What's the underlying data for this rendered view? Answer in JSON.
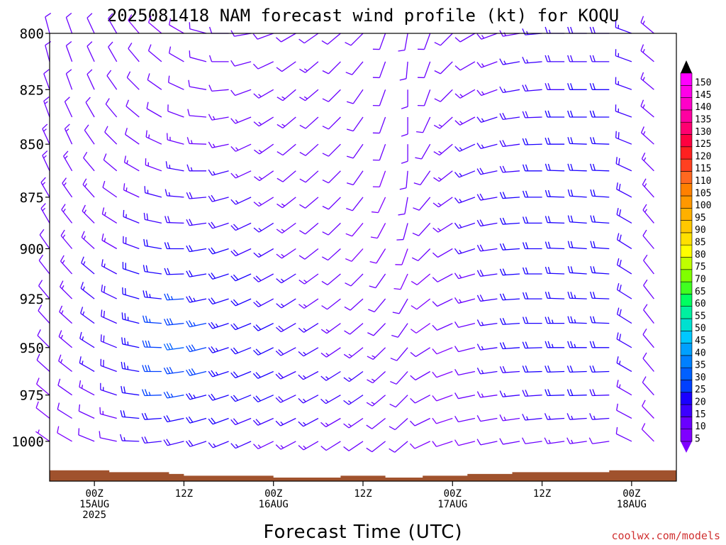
{
  "title": "2025081418 NAM forecast wind profile (kt) for KOQU",
  "credit": "coolwx.com/models",
  "chart_data": {
    "type": "wind-barb-time-height",
    "xlabel": "Forecast Time (UTC)",
    "ylabel": "",
    "y_log_pressure": true,
    "ylim_hpa": [
      1022,
      800
    ],
    "y_ticks": [
      800,
      825,
      850,
      875,
      900,
      925,
      950,
      975,
      1000
    ],
    "x_range": [
      "2025-08-14T18:00Z",
      "2025-08-18T06:00Z"
    ],
    "x_ticks": [
      {
        "time": "2025-08-15T00:00Z",
        "lines": [
          "00Z",
          "15AUG",
          "2025"
        ]
      },
      {
        "time": "2025-08-15T12:00Z",
        "lines": [
          "12Z"
        ]
      },
      {
        "time": "2025-08-16T00:00Z",
        "lines": [
          "00Z",
          "16AUG"
        ]
      },
      {
        "time": "2025-08-16T12:00Z",
        "lines": [
          "12Z"
        ]
      },
      {
        "time": "2025-08-17T00:00Z",
        "lines": [
          "00Z",
          "17AUG"
        ]
      },
      {
        "time": "2025-08-17T12:00Z",
        "lines": [
          "12Z"
        ]
      },
      {
        "time": "2025-08-18T00:00Z",
        "lines": [
          "00Z",
          "18AUG"
        ]
      }
    ],
    "levels_hpa": [
      800,
      812.5,
      825,
      837.5,
      850,
      862.5,
      875,
      887.5,
      900,
      912.5,
      925,
      937.5,
      950,
      962.5,
      975,
      987.5,
      1000
    ],
    "times": [
      "2025-08-14T18:00Z",
      "2025-08-14T21:00Z",
      "2025-08-15T00:00Z",
      "2025-08-15T03:00Z",
      "2025-08-15T06:00Z",
      "2025-08-15T09:00Z",
      "2025-08-15T12:00Z",
      "2025-08-15T15:00Z",
      "2025-08-15T18:00Z",
      "2025-08-15T21:00Z",
      "2025-08-16T00:00Z",
      "2025-08-16T03:00Z",
      "2025-08-16T06:00Z",
      "2025-08-16T09:00Z",
      "2025-08-16T12:00Z",
      "2025-08-16T15:00Z",
      "2025-08-16T18:00Z",
      "2025-08-16T21:00Z",
      "2025-08-17T00:00Z",
      "2025-08-17T03:00Z",
      "2025-08-17T06:00Z",
      "2025-08-17T09:00Z",
      "2025-08-17T12:00Z",
      "2025-08-17T15:00Z",
      "2025-08-17T18:00Z",
      "2025-08-17T21:00Z",
      "2025-08-18T00:00Z",
      "2025-08-18T03:00Z"
    ],
    "speed_kt": [
      [
        12,
        12,
        10,
        10,
        8,
        8,
        8,
        10,
        10,
        10,
        12,
        12,
        12,
        12,
        10,
        10,
        10,
        10,
        12,
        12,
        14,
        14,
        16,
        16,
        18,
        18,
        16,
        14
      ],
      [
        12,
        12,
        10,
        10,
        10,
        10,
        10,
        10,
        10,
        12,
        12,
        12,
        14,
        12,
        12,
        10,
        10,
        10,
        12,
        12,
        14,
        16,
        16,
        18,
        18,
        18,
        16,
        14
      ],
      [
        12,
        12,
        10,
        10,
        10,
        10,
        12,
        12,
        12,
        12,
        14,
        14,
        14,
        12,
        12,
        10,
        10,
        10,
        12,
        14,
        14,
        16,
        18,
        18,
        20,
        20,
        16,
        14
      ],
      [
        14,
        12,
        12,
        12,
        12,
        12,
        12,
        12,
        14,
        14,
        14,
        14,
        12,
        12,
        10,
        10,
        10,
        12,
        14,
        14,
        16,
        18,
        18,
        20,
        20,
        20,
        16,
        14
      ],
      [
        14,
        14,
        12,
        12,
        12,
        14,
        14,
        14,
        14,
        14,
        14,
        12,
        12,
        10,
        10,
        10,
        10,
        12,
        14,
        16,
        16,
        18,
        20,
        20,
        20,
        20,
        18,
        14
      ],
      [
        14,
        14,
        12,
        12,
        14,
        14,
        16,
        16,
        16,
        14,
        14,
        12,
        12,
        10,
        10,
        8,
        10,
        12,
        14,
        16,
        18,
        18,
        20,
        20,
        22,
        22,
        18,
        14
      ],
      [
        14,
        14,
        14,
        12,
        14,
        16,
        16,
        18,
        18,
        16,
        14,
        14,
        12,
        10,
        10,
        8,
        10,
        12,
        14,
        16,
        18,
        20,
        20,
        22,
        22,
        22,
        18,
        14
      ],
      [
        14,
        14,
        14,
        14,
        16,
        18,
        18,
        18,
        18,
        18,
        16,
        14,
        12,
        10,
        8,
        8,
        10,
        12,
        14,
        16,
        18,
        20,
        20,
        22,
        22,
        22,
        18,
        14
      ],
      [
        12,
        14,
        14,
        14,
        18,
        20,
        20,
        20,
        20,
        18,
        16,
        14,
        12,
        10,
        8,
        8,
        8,
        10,
        12,
        16,
        18,
        20,
        20,
        22,
        22,
        22,
        18,
        12
      ],
      [
        12,
        14,
        16,
        16,
        20,
        22,
        22,
        22,
        20,
        20,
        18,
        16,
        14,
        12,
        10,
        10,
        8,
        8,
        10,
        14,
        18,
        20,
        22,
        22,
        22,
        22,
        18,
        12
      ],
      [
        12,
        14,
        16,
        18,
        22,
        24,
        26,
        24,
        22,
        20,
        18,
        16,
        14,
        12,
        12,
        12,
        10,
        8,
        10,
        14,
        18,
        20,
        22,
        22,
        24,
        22,
        18,
        12
      ],
      [
        10,
        14,
        16,
        18,
        24,
        26,
        28,
        26,
        24,
        22,
        20,
        18,
        16,
        14,
        12,
        12,
        10,
        8,
        10,
        12,
        16,
        20,
        22,
        24,
        24,
        22,
        18,
        12
      ],
      [
        10,
        14,
        16,
        18,
        24,
        28,
        30,
        28,
        24,
        22,
        20,
        18,
        16,
        14,
        14,
        14,
        12,
        10,
        8,
        12,
        16,
        20,
        22,
        24,
        24,
        22,
        18,
        12
      ],
      [
        10,
        14,
        16,
        18,
        24,
        28,
        28,
        28,
        24,
        22,
        20,
        18,
        16,
        16,
        16,
        14,
        12,
        10,
        8,
        12,
        16,
        18,
        20,
        22,
        22,
        20,
        16,
        10
      ],
      [
        8,
        12,
        14,
        16,
        22,
        26,
        26,
        24,
        22,
        20,
        20,
        18,
        16,
        16,
        16,
        14,
        12,
        10,
        8,
        10,
        14,
        16,
        18,
        20,
        20,
        18,
        14,
        10
      ],
      [
        8,
        10,
        12,
        14,
        20,
        22,
        22,
        22,
        20,
        18,
        18,
        16,
        16,
        14,
        14,
        12,
        12,
        10,
        8,
        10,
        12,
        14,
        16,
        16,
        16,
        16,
        12,
        8
      ],
      [
        6,
        8,
        10,
        12,
        16,
        18,
        18,
        18,
        16,
        16,
        14,
        14,
        14,
        12,
        12,
        10,
        10,
        8,
        8,
        8,
        10,
        12,
        12,
        14,
        14,
        12,
        10,
        8
      ]
    ],
    "dir_deg": [
      [
        345,
        340,
        335,
        330,
        320,
        310,
        300,
        285,
        270,
        260,
        250,
        240,
        235,
        230,
        225,
        200,
        190,
        200,
        225,
        240,
        250,
        260,
        265,
        270,
        270,
        270,
        290,
        310
      ],
      [
        345,
        340,
        335,
        330,
        320,
        310,
        300,
        285,
        270,
        255,
        245,
        235,
        230,
        225,
        220,
        200,
        185,
        200,
        225,
        240,
        250,
        260,
        265,
        270,
        270,
        270,
        290,
        310
      ],
      [
        340,
        340,
        335,
        325,
        315,
        305,
        295,
        280,
        265,
        250,
        240,
        230,
        230,
        225,
        215,
        200,
        180,
        200,
        225,
        240,
        250,
        260,
        265,
        270,
        270,
        270,
        290,
        310
      ],
      [
        340,
        335,
        330,
        320,
        310,
        300,
        290,
        275,
        260,
        248,
        238,
        230,
        228,
        225,
        215,
        200,
        180,
        205,
        228,
        242,
        252,
        262,
        268,
        270,
        270,
        270,
        290,
        310
      ],
      [
        335,
        335,
        325,
        315,
        305,
        295,
        285,
        272,
        258,
        245,
        235,
        230,
        228,
        225,
        215,
        200,
        180,
        210,
        230,
        245,
        255,
        262,
        268,
        270,
        272,
        272,
        292,
        312
      ],
      [
        335,
        330,
        320,
        310,
        300,
        290,
        280,
        270,
        255,
        245,
        235,
        230,
        228,
        225,
        215,
        200,
        185,
        215,
        232,
        248,
        258,
        265,
        270,
        272,
        272,
        272,
        295,
        315
      ],
      [
        330,
        325,
        318,
        305,
        295,
        285,
        275,
        265,
        255,
        245,
        238,
        232,
        230,
        225,
        218,
        205,
        190,
        220,
        235,
        250,
        260,
        266,
        270,
        272,
        274,
        274,
        298,
        318
      ],
      [
        330,
        322,
        315,
        302,
        292,
        282,
        272,
        262,
        252,
        245,
        238,
        234,
        230,
        226,
        220,
        208,
        195,
        222,
        238,
        252,
        260,
        266,
        270,
        272,
        274,
        274,
        300,
        320
      ],
      [
        325,
        320,
        312,
        300,
        290,
        280,
        270,
        260,
        252,
        245,
        240,
        236,
        232,
        228,
        222,
        212,
        200,
        225,
        240,
        252,
        262,
        266,
        270,
        272,
        274,
        274,
        302,
        320
      ],
      [
        322,
        318,
        310,
        298,
        288,
        278,
        268,
        260,
        252,
        246,
        242,
        238,
        234,
        230,
        225,
        215,
        205,
        230,
        242,
        254,
        262,
        266,
        270,
        272,
        274,
        274,
        302,
        322
      ],
      [
        320,
        315,
        308,
        296,
        286,
        276,
        266,
        258,
        252,
        246,
        242,
        238,
        236,
        232,
        228,
        220,
        210,
        232,
        244,
        255,
        262,
        266,
        270,
        272,
        272,
        272,
        302,
        322
      ],
      [
        318,
        312,
        306,
        294,
        284,
        274,
        264,
        258,
        252,
        248,
        244,
        240,
        238,
        234,
        230,
        224,
        215,
        235,
        246,
        256,
        262,
        266,
        270,
        270,
        272,
        272,
        302,
        322
      ],
      [
        315,
        310,
        302,
        292,
        282,
        272,
        262,
        256,
        252,
        248,
        244,
        242,
        240,
        236,
        232,
        226,
        220,
        238,
        248,
        256,
        262,
        266,
        268,
        270,
        270,
        270,
        300,
        320
      ],
      [
        312,
        308,
        300,
        290,
        280,
        270,
        262,
        256,
        252,
        248,
        246,
        244,
        242,
        238,
        234,
        228,
        222,
        240,
        250,
        258,
        262,
        266,
        268,
        268,
        268,
        268,
        300,
        320
      ],
      [
        310,
        305,
        298,
        288,
        278,
        268,
        260,
        255,
        252,
        248,
        246,
        244,
        242,
        240,
        236,
        230,
        225,
        242,
        250,
        258,
        262,
        264,
        266,
        268,
        268,
        268,
        300,
        318
      ],
      [
        308,
        302,
        295,
        285,
        275,
        266,
        258,
        254,
        250,
        248,
        246,
        244,
        242,
        240,
        236,
        232,
        228,
        244,
        252,
        258,
        260,
        262,
        264,
        266,
        266,
        266,
        298,
        316
      ],
      [
        305,
        300,
        292,
        282,
        272,
        264,
        256,
        252,
        248,
        246,
        244,
        242,
        240,
        238,
        236,
        232,
        230,
        245,
        252,
        256,
        258,
        260,
        262,
        262,
        262,
        262,
        296,
        315
      ]
    ],
    "ground_pressure_hpa": [
      1016,
      1016,
      1016,
      1017,
      1017,
      1017,
      1018,
      1019,
      1019,
      1019,
      1019,
      1020,
      1020,
      1020,
      1019,
      1019,
      1020,
      1020,
      1019,
      1019,
      1018,
      1018,
      1017,
      1017,
      1017,
      1017,
      1016,
      1016,
      1016,
      1017
    ],
    "ground_times": [
      "2025-08-14T18:00Z",
      "2025-08-14T20:00Z",
      "2025-08-14T23:00Z",
      "2025-08-15T02:00Z",
      "2025-08-15T05:00Z",
      "2025-08-15T08:00Z",
      "2025-08-15T10:00Z",
      "2025-08-15T12:00Z",
      "2025-08-15T14:00Z",
      "2025-08-15T18:00Z",
      "2025-08-15T22:00Z",
      "2025-08-16T00:00Z",
      "2025-08-16T03:00Z",
      "2025-08-16T06:00Z",
      "2025-08-16T09:00Z",
      "2025-08-16T12:00Z",
      "2025-08-16T15:00Z",
      "2025-08-16T17:00Z",
      "2025-08-16T20:00Z",
      "2025-08-16T23:00Z",
      "2025-08-17T02:00Z",
      "2025-08-17T05:00Z",
      "2025-08-17T08:00Z",
      "2025-08-17T11:00Z",
      "2025-08-17T14:00Z",
      "2025-08-17T17:00Z",
      "2025-08-17T21:00Z",
      "2025-08-18T00:00Z",
      "2025-08-18T03:00Z",
      "2025-08-18T06:00Z"
    ],
    "ground_color": "#a0522d",
    "colorbar": {
      "values": [
        5,
        10,
        15,
        20,
        25,
        30,
        35,
        40,
        45,
        50,
        55,
        60,
        65,
        70,
        75,
        80,
        85,
        90,
        95,
        100,
        105,
        110,
        115,
        120,
        125,
        130,
        135,
        140,
        145,
        150
      ],
      "colors": [
        "#7f00ff",
        "#6a00ff",
        "#3d00ff",
        "#1a00ff",
        "#0040ff",
        "#0060ff",
        "#0080ff",
        "#00a0ff",
        "#00c8ff",
        "#00e0d0",
        "#00f0a0",
        "#00ff60",
        "#40ff20",
        "#80ff00",
        "#c0ff00",
        "#ffff00",
        "#ffe000",
        "#ffc800",
        "#ffb000",
        "#ff9800",
        "#ff8000",
        "#ff6820",
        "#ff4020",
        "#ff2020",
        "#ff0040",
        "#ff0070",
        "#ff00a0",
        "#ff00c8",
        "#ff00e8",
        "#ff00ff"
      ],
      "top_arrow_color": "#000000",
      "bottom_arrow_color": "#7f00ff"
    }
  }
}
